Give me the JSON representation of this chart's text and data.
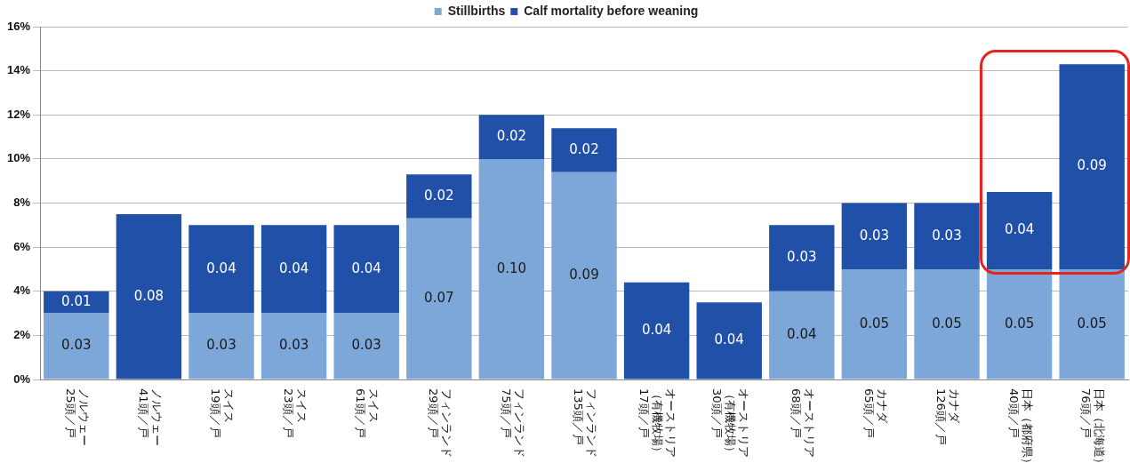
{
  "chart_data": {
    "type": "bar",
    "stacked": true,
    "categories": [
      "ノルウェー\n25頭／戸",
      "ノルウェー\n41頭／戸",
      "スイス\n19頭／戸",
      "スイス\n23頭／戸",
      "スイス\n61頭／戸",
      "フィンランド\n29頭／戸",
      "フィンランド\n75頭／戸",
      "フィンランド\n135頭／戸",
      "オーストリア（有機牧場）\n17頭／戸",
      "オーストリア（有機牧場）\n30頭／戸",
      "オーストリア\n68頭／戸",
      "カナダ\n65頭／戸",
      "カナダ\n126頭／戸",
      "日本（都府県）\n40頭／戸",
      "日本（北海道）\n76頭／戸"
    ],
    "series": [
      {
        "name": "Stillbirths",
        "color": "#7ea7d9",
        "values": [
          0.03,
          0,
          0.03,
          0.03,
          0.03,
          0.073,
          0.1,
          0.094,
          0,
          0,
          0.04,
          0.05,
          0.05,
          0.05,
          0.05
        ],
        "value_labels": [
          "0.03",
          null,
          "0.03",
          "0.03",
          "0.03",
          "0.07",
          "0.10",
          "0.09",
          null,
          null,
          "0.04",
          "0.05",
          "0.05",
          "0.05",
          "0.05"
        ]
      },
      {
        "name": "Calf mortality before weaning",
        "color": "#2150a8",
        "values": [
          0.01,
          0.075,
          0.04,
          0.04,
          0.04,
          0.02,
          0.02,
          0.02,
          0.044,
          0.035,
          0.03,
          0.03,
          0.03,
          0.035,
          0.093
        ],
        "value_labels": [
          "0.01",
          "0.08",
          "0.04",
          "0.04",
          "0.04",
          "0.02",
          "0.02",
          "0.02",
          "0.04",
          "0.04",
          "0.03",
          "0.03",
          "0.03",
          "0.04",
          "0.09"
        ]
      }
    ],
    "ylim": [
      0,
      0.16
    ],
    "yticks": [
      {
        "value": 0,
        "label": "0%"
      },
      {
        "value": 0.02,
        "label": "2%"
      },
      {
        "value": 0.04,
        "label": "4%"
      },
      {
        "value": 0.06,
        "label": "6%"
      },
      {
        "value": 0.08,
        "label": "8%"
      },
      {
        "value": 0.1,
        "label": "10%"
      },
      {
        "value": 0.12,
        "label": "12%"
      },
      {
        "value": 0.14,
        "label": "14%"
      },
      {
        "value": 0.16,
        "label": "16%"
      }
    ],
    "grid": "y",
    "legend": "top"
  }
}
